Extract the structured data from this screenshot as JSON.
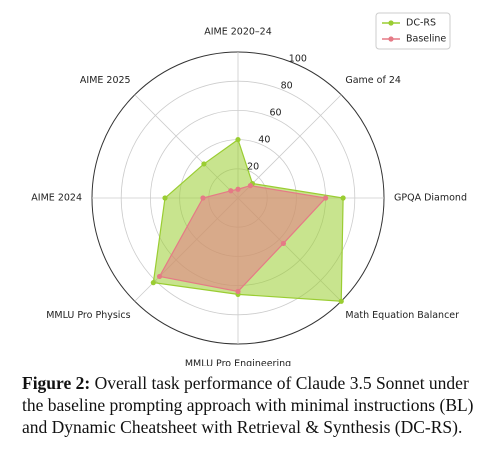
{
  "chart_data": {
    "type": "radar",
    "categories": [
      "AIME 2020–24",
      "Game of 24",
      "GPQA Diamond",
      "Math Equation Balancer",
      "MMLU Pro Engineering",
      "MMLU Pro Physics",
      "AIME 2024",
      "AIME 2025"
    ],
    "series": [
      {
        "name": "DC-RS",
        "color": "#9acd32",
        "values": [
          40,
          14,
          72,
          100,
          66,
          82,
          50,
          33
        ]
      },
      {
        "name": "Baseline",
        "color": "#e57a86",
        "values": [
          6,
          12,
          60,
          44,
          64,
          76,
          24,
          7
        ]
      }
    ],
    "rlim": [
      0,
      100
    ],
    "rticks": [
      20,
      40,
      60,
      80,
      100
    ],
    "grid": true,
    "legend": "upper right",
    "caption_label": "Figure 2:",
    "caption_text": "Overall task performance of Claude 3.5 Sonnet under the baseline prompting approach with minimal instructions (BL) and Dynamic Cheatsheet with Retrieval & Synthesis (DC-RS)."
  }
}
